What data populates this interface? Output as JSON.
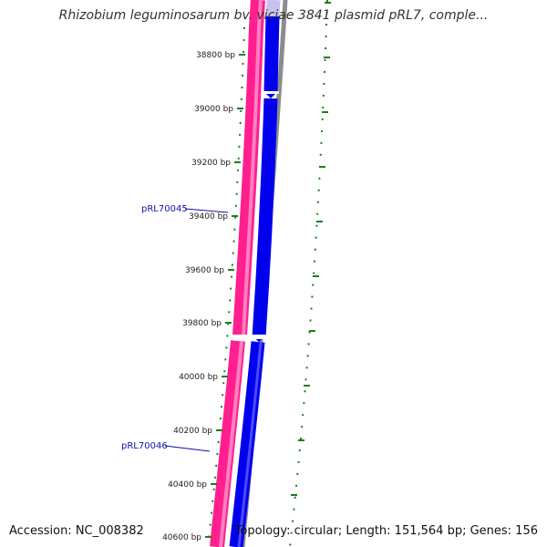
{
  "header": {
    "title": "Rhizobium leguminosarum bv. viciae 3841 plasmid pRL7, comple..."
  },
  "footer": {
    "accession": "Accession: NC_008382",
    "summary": "Topology: circular; Length: 151,564 bp; Genes: 156"
  },
  "ticks": [
    {
      "label": "38800 bp"
    },
    {
      "label": "39000 bp"
    },
    {
      "label": "39200 bp"
    },
    {
      "label": "39400 bp"
    },
    {
      "label": "39600 bp"
    },
    {
      "label": "39800 bp"
    },
    {
      "label": "40000 bp"
    },
    {
      "label": "40200 bp"
    },
    {
      "label": "40400 bp"
    },
    {
      "label": "40600 bp"
    }
  ],
  "genes": [
    {
      "label": "pRL70045"
    },
    {
      "label": "pRL70046"
    }
  ],
  "colors": {
    "forward_strand": "#ff1493",
    "reverse_strand": "#0000ee",
    "backbone": "#888888",
    "tick": "#1a7f1a",
    "label": "#1010b0"
  }
}
